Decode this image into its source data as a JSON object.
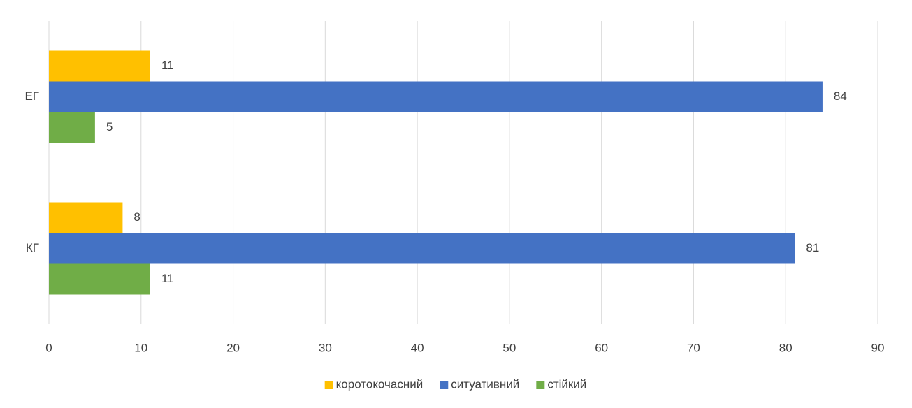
{
  "chart_data": {
    "type": "bar",
    "orientation": "horizontal",
    "categories": [
      "ЕГ",
      "КГ"
    ],
    "series": [
      {
        "name": "коротокочасний",
        "color": "#ffc000",
        "values": [
          11,
          8
        ]
      },
      {
        "name": "ситуативний",
        "color": "#4472c4",
        "values": [
          84,
          81
        ]
      },
      {
        "name": "стійкий",
        "color": "#70ad47",
        "values": [
          5,
          11
        ]
      }
    ],
    "xlim": [
      0,
      90
    ],
    "xticks": [
      0,
      10,
      20,
      30,
      40,
      50,
      60,
      70,
      80,
      90
    ],
    "grid": true,
    "legend": "bottom"
  }
}
